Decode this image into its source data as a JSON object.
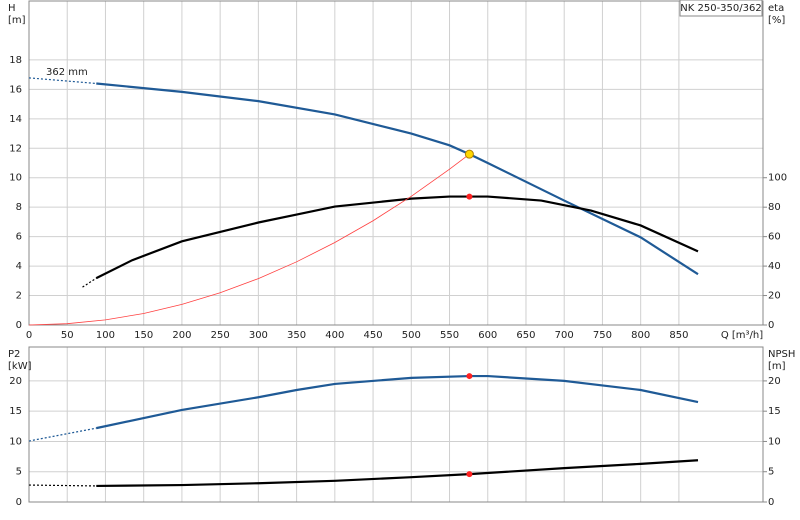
{
  "chart_data": [
    {
      "type": "line",
      "title": "NK 250-350/362",
      "ylabel": "H",
      "yunit": "[m]",
      "y2label": "eta",
      "y2unit": "[%]",
      "xlabel": "Q [m³/h]",
      "annotation": "362 mm",
      "xlim": [
        0,
        960
      ],
      "xticks": [
        0,
        50,
        100,
        150,
        200,
        250,
        300,
        350,
        400,
        450,
        500,
        550,
        600,
        650,
        700,
        750,
        800,
        850
      ],
      "ylim": [
        0,
        22
      ],
      "yticks": [
        0,
        2,
        4,
        6,
        8,
        10,
        12,
        14,
        16,
        18
      ],
      "y2lim": [
        0,
        220
      ],
      "y2ticks": [
        0,
        20,
        40,
        60,
        80,
        100
      ],
      "grid": true,
      "series": [
        {
          "color": "#1f5a96",
          "style": "dashed",
          "x": [
            0,
            88
          ],
          "values": [
            16.78,
            16.4
          ]
        },
        {
          "color": "#1f5a96",
          "style": "solid",
          "x": [
            88,
            200,
            300,
            400,
            500,
            550,
            576,
            600,
            700,
            800,
            875
          ],
          "values": [
            16.4,
            15.83,
            15.2,
            14.3,
            13.0,
            12.2,
            11.6,
            11.0,
            8.45,
            5.95,
            3.45
          ]
        },
        {
          "color": "#000000",
          "style": "dashed",
          "axis": "y2",
          "x": [
            70,
            88
          ],
          "values": [
            25.7,
            31.8
          ]
        },
        {
          "color": "#000000",
          "style": "solid",
          "axis": "y2",
          "x": [
            88,
            135,
            200,
            300,
            350,
            400,
            500,
            550,
            576,
            600,
            670,
            735,
            800,
            875
          ],
          "values": [
            31.8,
            44,
            56.8,
            69.6,
            75,
            80.4,
            85.8,
            87.2,
            87.2,
            87.2,
            84.5,
            77.7,
            67.6,
            50
          ]
        },
        {
          "color": "#ff4040",
          "style": "thin",
          "x": [
            0,
            50,
            100,
            150,
            200,
            250,
            300,
            350,
            400,
            450,
            500,
            550,
            576
          ],
          "values": [
            0,
            0.09,
            0.35,
            0.78,
            1.4,
            2.19,
            3.15,
            4.29,
            5.6,
            7.08,
            8.74,
            10.58,
            11.6
          ]
        }
      ],
      "points": [
        {
          "x": 576,
          "y": 11.6,
          "color": "#ffd700"
        },
        {
          "x": 576,
          "y": 87.2,
          "color": "#ff2020",
          "axis": "y2"
        }
      ]
    },
    {
      "type": "line",
      "ylabel": "P2",
      "yunit": "[kW]",
      "y2label": "NPSH",
      "y2unit": "[m]",
      "xlim": [
        0,
        960
      ],
      "xticks": [
        0,
        50,
        100,
        150,
        200,
        250,
        300,
        350,
        400,
        450,
        500,
        550,
        600,
        650,
        700,
        750,
        800,
        850
      ],
      "ylim": [
        0,
        25.6
      ],
      "yticks": [
        0,
        5,
        10,
        15,
        20
      ],
      "y2lim": [
        0,
        25.6
      ],
      "y2ticks": [
        0,
        5,
        10,
        15,
        20
      ],
      "grid": true,
      "series": [
        {
          "color": "#1f5a96",
          "style": "dashed",
          "x": [
            0,
            88
          ],
          "values": [
            10.07,
            12.2
          ]
        },
        {
          "color": "#1f5a96",
          "style": "solid",
          "x": [
            88,
            200,
            300,
            350,
            400,
            500,
            576,
            600,
            700,
            800,
            875
          ],
          "values": [
            12.2,
            15.2,
            17.3,
            18.5,
            19.5,
            20.5,
            20.8,
            20.8,
            20,
            18.5,
            16.5
          ]
        },
        {
          "color": "#000000",
          "style": "dashed",
          "axis": "y2",
          "x": [
            0,
            88
          ],
          "values": [
            2.8,
            2.65
          ]
        },
        {
          "color": "#000000",
          "style": "solid",
          "axis": "y2",
          "x": [
            88,
            200,
            300,
            400,
            500,
            576,
            700,
            800,
            875
          ],
          "values": [
            2.65,
            2.8,
            3.1,
            3.5,
            4.1,
            4.6,
            5.6,
            6.3,
            6.9
          ]
        }
      ],
      "points": [
        {
          "x": 576,
          "y": 20.8,
          "color": "#ff2020"
        },
        {
          "x": 576,
          "y": 4.6,
          "color": "#ff2020",
          "axis": "y2"
        }
      ]
    }
  ]
}
